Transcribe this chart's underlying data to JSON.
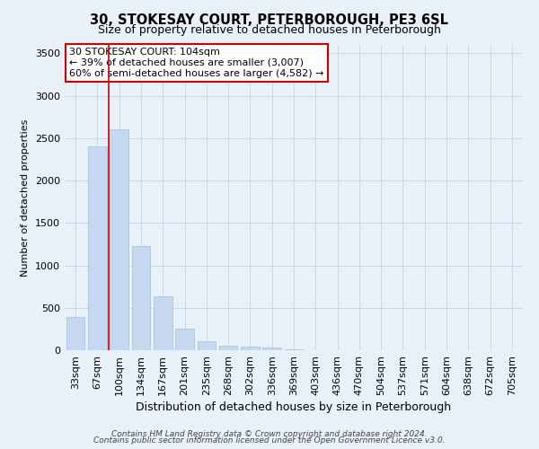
{
  "title": "30, STOKESAY COURT, PETERBOROUGH, PE3 6SL",
  "subtitle": "Size of property relative to detached houses in Peterborough",
  "xlabel": "Distribution of detached houses by size in Peterborough",
  "ylabel": "Number of detached properties",
  "footer_line1": "Contains HM Land Registry data © Crown copyright and database right 2024.",
  "footer_line2": "Contains public sector information licensed under the Open Government Licence v3.0.",
  "categories": [
    "33sqm",
    "67sqm",
    "100sqm",
    "134sqm",
    "167sqm",
    "201sqm",
    "235sqm",
    "268sqm",
    "302sqm",
    "336sqm",
    "369sqm",
    "403sqm",
    "436sqm",
    "470sqm",
    "504sqm",
    "537sqm",
    "571sqm",
    "604sqm",
    "638sqm",
    "672sqm",
    "705sqm"
  ],
  "values": [
    390,
    2400,
    2600,
    1230,
    640,
    255,
    110,
    55,
    45,
    30,
    10,
    5,
    0,
    0,
    0,
    0,
    0,
    0,
    0,
    0,
    0
  ],
  "bar_color": "#c5d8ef",
  "bar_edge_color": "#a0bee0",
  "grid_color": "#c8d8e8",
  "background_color": "#e8f0f8",
  "plot_bg_color": "#e8f0f8",
  "annotation_text": "30 STOKESAY COURT: 104sqm\n← 39% of detached houses are smaller (3,007)\n60% of semi-detached houses are larger (4,582) →",
  "vline_x_index": 2,
  "vline_color": "#cc0000",
  "annotation_box_edge_color": "#cc0000",
  "ylim": [
    0,
    3600
  ],
  "yticks": [
    0,
    500,
    1000,
    1500,
    2000,
    2500,
    3000,
    3500
  ],
  "title_fontsize": 10.5,
  "subtitle_fontsize": 9,
  "ylabel_fontsize": 8,
  "xlabel_fontsize": 9,
  "tick_fontsize": 8,
  "footer_fontsize": 6.5
}
